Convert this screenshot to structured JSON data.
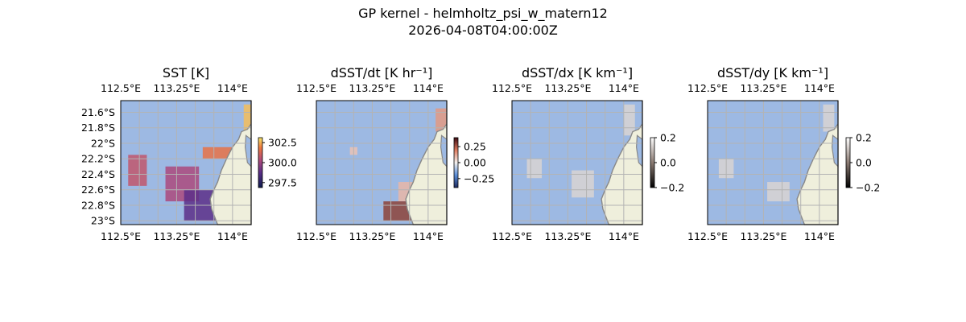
{
  "figure": {
    "title_line1": "GP kernel - helmholtz_psi_w_matern12",
    "title_line2": "2026-04-08T04:00:00Z"
  },
  "colors": {
    "ocean": "#9db9e3",
    "land": "#efefdc",
    "coast": "#888888",
    "grid": "#b3b3b3"
  },
  "chart_data": [
    {
      "type": "heatmap",
      "title": "SST [K]",
      "lon_ticks": [
        "112.5°E",
        "113.25°E",
        "114°E"
      ],
      "lat_ticks": [
        "21.6°S",
        "21.8°S",
        "22°S",
        "22.2°S",
        "22.4°S",
        "22.6°S",
        "22.8°S",
        "23°S"
      ],
      "colorbar": {
        "ticks": [
          "302.5",
          "300.0",
          "297.5"
        ],
        "range": [
          297,
          303.5
        ],
        "cmap": "thermal"
      },
      "patches": [
        {
          "lon": [
            112.6,
            112.85
          ],
          "lat": [
            -22.15,
            -22.55
          ],
          "value": 301.0
        },
        {
          "lon": [
            113.1,
            113.55
          ],
          "lat": [
            -22.3,
            -22.75
          ],
          "value": 300.5
        },
        {
          "lon": [
            113.35,
            113.9
          ],
          "lat": [
            -22.6,
            -23.0
          ],
          "value": 299.0
        },
        {
          "lon": [
            113.6,
            114.0
          ],
          "lat": [
            -22.05,
            -22.2
          ],
          "value": 302.0
        },
        {
          "lon": [
            114.15,
            114.25
          ],
          "lat": [
            -21.5,
            -21.9
          ],
          "value": 303.0
        }
      ]
    },
    {
      "type": "heatmap",
      "title": "dSST/dt [K hr⁻¹]",
      "lon_ticks": [
        "112.5°E",
        "113.25°E",
        "114°E"
      ],
      "lat_ticks": [],
      "colorbar": {
        "ticks": [
          "0.25",
          "0.00",
          "−0.25"
        ],
        "range": [
          -0.4,
          0.4
        ],
        "cmap": "balance"
      },
      "patches": [
        {
          "lon": [
            114.1,
            114.25
          ],
          "lat": [
            -21.55,
            -21.85
          ],
          "value": 0.15
        },
        {
          "lon": [
            113.6,
            113.85
          ],
          "lat": [
            -22.5,
            -22.75
          ],
          "value": 0.1
        },
        {
          "lon": [
            113.4,
            113.8
          ],
          "lat": [
            -22.75,
            -23.0
          ],
          "value": 0.3
        },
        {
          "lon": [
            112.95,
            113.05
          ],
          "lat": [
            -22.05,
            -22.15
          ],
          "value": 0.08
        }
      ]
    },
    {
      "type": "heatmap",
      "title": "dSST/dx [K km⁻¹]",
      "lon_ticks": [
        "112.5°E",
        "113.25°E",
        "114°E"
      ],
      "lat_ticks": [],
      "colorbar": {
        "ticks": [
          "0.2",
          "0.0",
          "−0.2"
        ],
        "range": [
          -0.2,
          0.2
        ],
        "cmap": "gray"
      },
      "patches": [
        {
          "lon": [
            112.7,
            112.9
          ],
          "lat": [
            -22.2,
            -22.45
          ],
          "value": 0.0
        },
        {
          "lon": [
            113.3,
            113.6
          ],
          "lat": [
            -22.35,
            -22.7
          ],
          "value": 0.0
        },
        {
          "lon": [
            114.0,
            114.15
          ],
          "lat": [
            -21.5,
            -21.9
          ],
          "value": 0.0
        }
      ]
    },
    {
      "type": "heatmap",
      "title": "dSST/dy [K km⁻¹]",
      "lon_ticks": [
        "112.5°E",
        "113.25°E",
        "114°E"
      ],
      "lat_ticks": [],
      "colorbar": {
        "ticks": [
          "0.2",
          "0.0",
          "−0.2"
        ],
        "range": [
          -0.2,
          0.2
        ],
        "cmap": "gray"
      },
      "patches": [
        {
          "lon": [
            112.65,
            112.85
          ],
          "lat": [
            -22.2,
            -22.45
          ],
          "value": 0.0
        },
        {
          "lon": [
            113.3,
            113.6
          ],
          "lat": [
            -22.5,
            -22.75
          ],
          "value": 0.0
        },
        {
          "lon": [
            114.05,
            114.2
          ],
          "lat": [
            -21.5,
            -21.85
          ],
          "value": 0.0
        }
      ]
    }
  ]
}
